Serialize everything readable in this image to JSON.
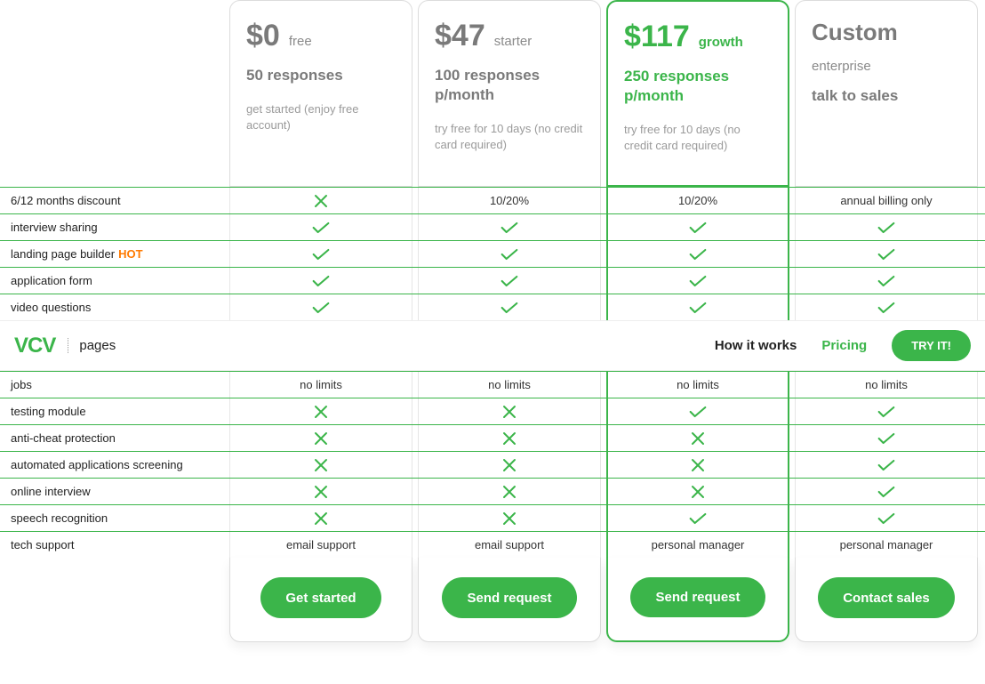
{
  "colors": {
    "accent": "#3bb54a",
    "text_muted": "#7a7a7a",
    "text_light": "#9a9a9a",
    "hot": "#ff7a00",
    "border": "#dcdcdc",
    "row_border": "#3bb54a"
  },
  "plans": [
    {
      "price": "$0",
      "name": "free",
      "responses": "50 responses",
      "note": "get started (enjoy free account)",
      "highlighted": false,
      "cta": "Get started"
    },
    {
      "price": "$47",
      "name": "starter",
      "responses": "100 responses p/month",
      "note": "try free for 10 days (no credit card required)",
      "highlighted": false,
      "cta": "Send request"
    },
    {
      "price": "$117",
      "name": "growth",
      "responses": "250 responses p/month",
      "note": "try free for 10 days (no credit card required)",
      "highlighted": true,
      "cta": "Send request"
    },
    {
      "price": "Custom",
      "name": "enterprise",
      "responses": "talk to sales",
      "note": "",
      "highlighted": false,
      "cta": "Contact sales"
    }
  ],
  "features_top": [
    {
      "label": "6/12 months discount",
      "hot": false,
      "cells": [
        "cross",
        "10/20%",
        "10/20%",
        "annual billing only"
      ]
    },
    {
      "label": "interview sharing",
      "hot": false,
      "cells": [
        "check",
        "check",
        "check",
        "check"
      ]
    },
    {
      "label": "landing page builder",
      "hot": true,
      "cells": [
        "check",
        "check",
        "check",
        "check"
      ]
    },
    {
      "label": "application form",
      "hot": false,
      "cells": [
        "check",
        "check",
        "check",
        "check"
      ]
    },
    {
      "label": "video questions",
      "hot": false,
      "cells": [
        "check",
        "check",
        "check",
        "check"
      ]
    }
  ],
  "features_bottom": [
    {
      "label": "jobs",
      "hot": false,
      "cells": [
        "no limits",
        "no limits",
        "no limits",
        "no limits"
      ]
    },
    {
      "label": "testing module",
      "hot": false,
      "cells": [
        "cross",
        "cross",
        "check",
        "check"
      ]
    },
    {
      "label": "anti-cheat protection",
      "hot": false,
      "cells": [
        "cross",
        "cross",
        "cross",
        "check"
      ]
    },
    {
      "label": "automated applications screening",
      "hot": false,
      "cells": [
        "cross",
        "cross",
        "cross",
        "check"
      ]
    },
    {
      "label": "online interview",
      "hot": false,
      "cells": [
        "cross",
        "cross",
        "cross",
        "check"
      ]
    },
    {
      "label": "speech recognition",
      "hot": false,
      "cells": [
        "cross",
        "cross",
        "check",
        "check"
      ]
    },
    {
      "label": "tech support",
      "hot": false,
      "cells": [
        "email support",
        "email support",
        "personal manager",
        "personal manager"
      ]
    }
  ],
  "nav": {
    "logo": "VCV",
    "logo_sub": "pages",
    "links": [
      {
        "label": "How it works",
        "active": false
      },
      {
        "label": "Pricing",
        "active": true
      }
    ],
    "try_button": "TRY IT!"
  },
  "hot_label": "HOT"
}
